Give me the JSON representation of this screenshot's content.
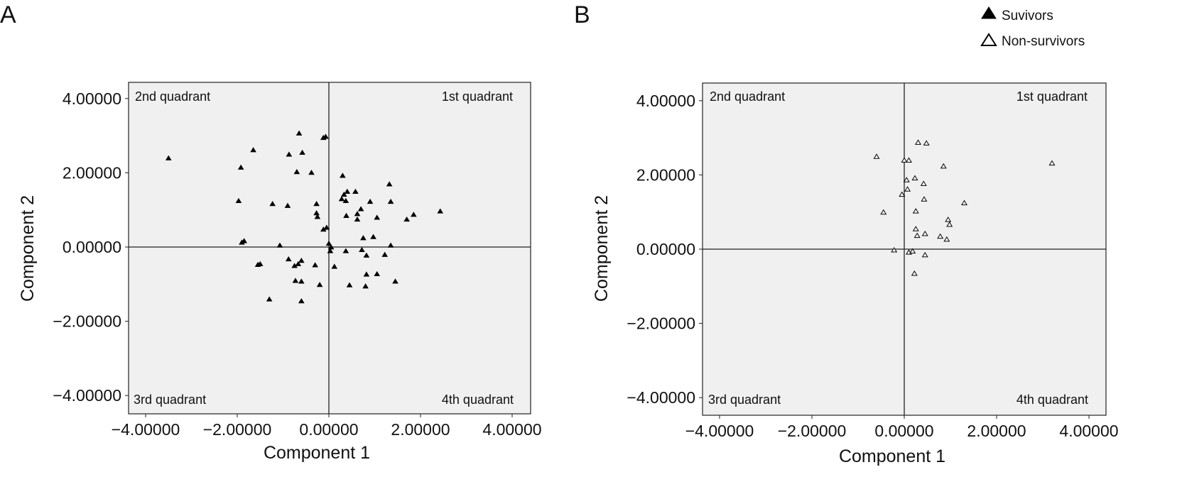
{
  "legend": {
    "items": [
      {
        "label": "Suvivors",
        "marker": "filled-triangle"
      },
      {
        "label": "Non-survivors",
        "marker": "open-triangle"
      }
    ]
  },
  "chart_data": [
    {
      "panel": "A",
      "type": "scatter",
      "xlabel": "Component 1",
      "ylabel": "Component 2",
      "xlim": [
        -4.5,
        4.4
      ],
      "ylim": [
        -4.5,
        4.4
      ],
      "xticks": [
        -4,
        -2,
        0,
        2,
        4
      ],
      "yticks": [
        -4,
        -2,
        0,
        2,
        4
      ],
      "xtick_labels": [
        "−4.00000",
        "−2.00000",
        "0.00000",
        "2.00000",
        "4.00000"
      ],
      "ytick_labels": [
        "−4.00000",
        "−2.00000",
        "0.00000",
        "2.00000",
        "4.00000"
      ],
      "grid": false,
      "quadrant_labels": {
        "q1": "1st quadrant",
        "q2": "2nd quadrant",
        "q3": "3rd quadrant",
        "q4": "4th quadrant"
      },
      "series": [
        {
          "name": "Suvivors",
          "marker": "filled-triangle",
          "points": [
            [
              -3.5,
              2.4
            ],
            [
              -1.65,
              2.62
            ],
            [
              -1.92,
              2.15
            ],
            [
              -1.97,
              1.25
            ],
            [
              -1.85,
              0.17
            ],
            [
              -1.9,
              0.13
            ],
            [
              -1.23,
              1.17
            ],
            [
              -0.9,
              1.12
            ],
            [
              -1.07,
              0.05
            ],
            [
              -1.5,
              -0.45
            ],
            [
              -1.55,
              -0.47
            ],
            [
              -1.3,
              -1.4
            ],
            [
              -0.87,
              2.5
            ],
            [
              -0.65,
              3.07
            ],
            [
              -0.58,
              2.55
            ],
            [
              -0.7,
              2.03
            ],
            [
              -0.38,
              2.01
            ],
            [
              -0.12,
              2.95
            ],
            [
              -0.07,
              2.98
            ],
            [
              -0.27,
              1.17
            ],
            [
              -0.27,
              0.92
            ],
            [
              -0.25,
              0.82
            ],
            [
              -0.12,
              0.48
            ],
            [
              -0.05,
              0.53
            ],
            [
              -0.88,
              -0.32
            ],
            [
              -0.75,
              -0.5
            ],
            [
              -0.67,
              -0.45
            ],
            [
              -0.6,
              -0.36
            ],
            [
              -0.3,
              -0.48
            ],
            [
              -0.73,
              -0.9
            ],
            [
              -0.6,
              -0.92
            ],
            [
              -0.6,
              -1.45
            ],
            [
              -0.2,
              -1.01
            ],
            [
              0.0,
              0.1
            ],
            [
              0.05,
              0.0
            ],
            [
              0.03,
              -0.1
            ],
            [
              0.12,
              -0.52
            ],
            [
              0.3,
              1.93
            ],
            [
              0.28,
              1.3
            ],
            [
              0.33,
              1.42
            ],
            [
              0.37,
              1.25
            ],
            [
              0.4,
              1.5
            ],
            [
              0.58,
              1.5
            ],
            [
              0.62,
              0.9
            ],
            [
              0.62,
              0.75
            ],
            [
              0.38,
              0.85
            ],
            [
              0.7,
              1.03
            ],
            [
              0.9,
              1.23
            ],
            [
              1.05,
              0.8
            ],
            [
              0.75,
              0.25
            ],
            [
              0.97,
              0.28
            ],
            [
              1.32,
              1.7
            ],
            [
              1.35,
              1.23
            ],
            [
              1.7,
              0.75
            ],
            [
              1.85,
              0.88
            ],
            [
              2.43,
              0.97
            ],
            [
              0.37,
              -0.1
            ],
            [
              0.72,
              -0.07
            ],
            [
              0.82,
              -0.22
            ],
            [
              1.22,
              -0.2
            ],
            [
              1.35,
              0.05
            ],
            [
              0.82,
              -0.73
            ],
            [
              1.05,
              -0.72
            ],
            [
              1.45,
              -0.92
            ],
            [
              0.45,
              -1.02
            ],
            [
              0.8,
              -1.05
            ]
          ]
        }
      ]
    },
    {
      "panel": "B",
      "type": "scatter",
      "xlabel": "Component 1",
      "ylabel": "Component 2",
      "xlim": [
        -4.5,
        4.4
      ],
      "ylim": [
        -4.5,
        4.4
      ],
      "xticks": [
        -4,
        -2,
        0,
        2,
        4
      ],
      "yticks": [
        -4,
        -2,
        0,
        2,
        4
      ],
      "xtick_labels": [
        "−4.00000",
        "−2.00000",
        "0.00000",
        "2.00000",
        "4.00000"
      ],
      "ytick_labels": [
        "−4.00000",
        "−2.00000",
        "0.00000",
        "2.00000",
        "4.00000"
      ],
      "grid": false,
      "quadrant_labels": {
        "q1": "1st quadrant",
        "q2": "2nd quadrant",
        "q3": "3rd quadrant",
        "q4": "4th quadrant"
      },
      "series": [
        {
          "name": "Non-survivors",
          "marker": "open-triangle",
          "points": [
            [
              -0.6,
              2.5
            ],
            [
              -0.45,
              1.0
            ],
            [
              -0.05,
              1.48
            ],
            [
              0.0,
              2.4
            ],
            [
              0.1,
              2.4
            ],
            [
              0.05,
              1.87
            ],
            [
              0.07,
              1.62
            ],
            [
              0.3,
              2.88
            ],
            [
              0.48,
              2.86
            ],
            [
              0.23,
              1.92
            ],
            [
              0.42,
              1.77
            ],
            [
              0.43,
              1.35
            ],
            [
              0.25,
              1.03
            ],
            [
              0.85,
              2.24
            ],
            [
              1.3,
              1.25
            ],
            [
              3.2,
              2.32
            ],
            [
              0.25,
              0.55
            ],
            [
              0.28,
              0.37
            ],
            [
              0.45,
              0.42
            ],
            [
              0.78,
              0.35
            ],
            [
              0.92,
              0.27
            ],
            [
              0.95,
              0.8
            ],
            [
              0.98,
              0.67
            ],
            [
              -0.22,
              -0.02
            ],
            [
              0.1,
              -0.08
            ],
            [
              0.18,
              -0.05
            ],
            [
              0.45,
              -0.15
            ],
            [
              0.22,
              -0.65
            ]
          ]
        }
      ]
    }
  ]
}
